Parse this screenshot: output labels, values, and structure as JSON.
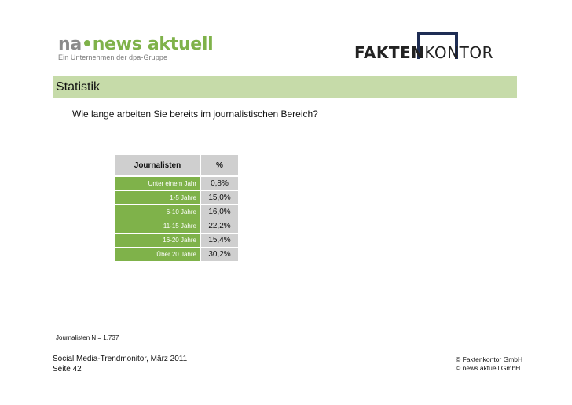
{
  "logos": {
    "news_aktuell": {
      "na": "na",
      "dot": "•",
      "rest": "news aktuell",
      "tagline": "Ein Unternehmen der dpa-Gruppe"
    },
    "faktenkontor": {
      "fakten": "FAKTEN",
      "kontor": "KONTOR"
    }
  },
  "header": {
    "title": "Statistik"
  },
  "question": "Wie lange arbeiten Sie bereits im journalistischen Bereich?",
  "table": {
    "col_label": "Journalisten",
    "col_value": "%",
    "rows": [
      {
        "label": "Unter einem Jahr",
        "value": "0,8%"
      },
      {
        "label": "1-5 Jahre",
        "value": "15,0%"
      },
      {
        "label": "6-10 Jahre",
        "value": "16,0%"
      },
      {
        "label": "11-15 Jahre",
        "value": "22,2%"
      },
      {
        "label": "16-20 Jahre",
        "value": "15,4%"
      },
      {
        "label": "Über 20 Jahre",
        "value": "30,2%"
      }
    ],
    "colors": {
      "label_bg": "#7fb24a",
      "value_bg": "#cfcfcf"
    }
  },
  "note": "Journalisten N = 1.737",
  "footer": {
    "left_line1": "Social Media-Trendmonitor, März 2011",
    "left_line2": "Seite 42",
    "right_line1": "© Faktenkontor GmbH",
    "right_line2": "© news aktuell GmbH"
  },
  "colors": {
    "banner": "#c6dba9",
    "accent_green": "#7fb24a",
    "navy": "#1e2d54"
  }
}
